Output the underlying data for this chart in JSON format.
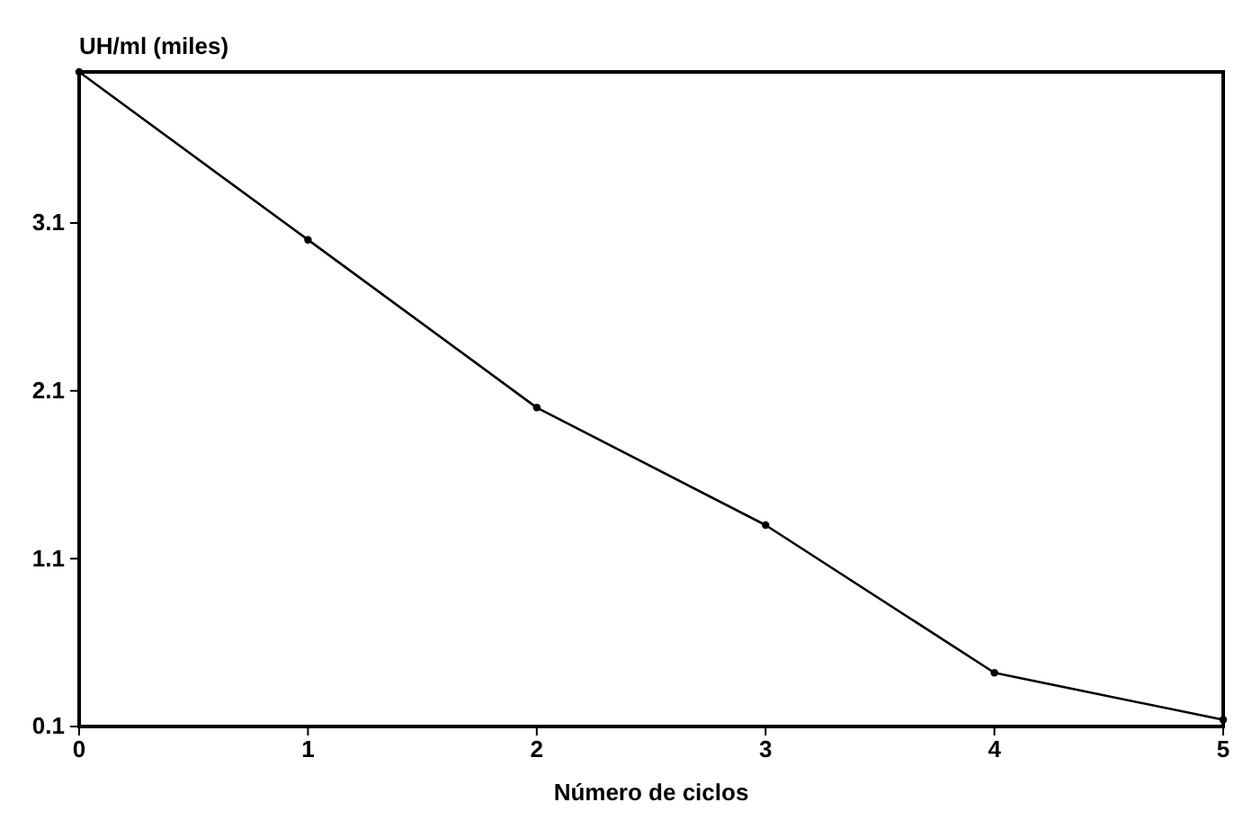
{
  "chart_data": {
    "type": "line",
    "xlabel": "Número de ciclos",
    "ylabel": "UH/ml (miles)",
    "x": [
      0,
      1,
      2,
      3,
      4,
      5
    ],
    "series": [
      {
        "color": "#000000",
        "values": [
          4.0,
          3.0,
          2.0,
          1.3,
          0.42,
          0.14
        ]
      }
    ],
    "xlim": [
      0,
      5
    ],
    "xticks": [
      0,
      1,
      2,
      3,
      4,
      5
    ],
    "ylim": [
      0.1,
      4.0
    ],
    "yticks": [
      0.1,
      1.1,
      2.1,
      3.1
    ],
    "grid": false,
    "marker": "circle",
    "line_style": "solid"
  }
}
